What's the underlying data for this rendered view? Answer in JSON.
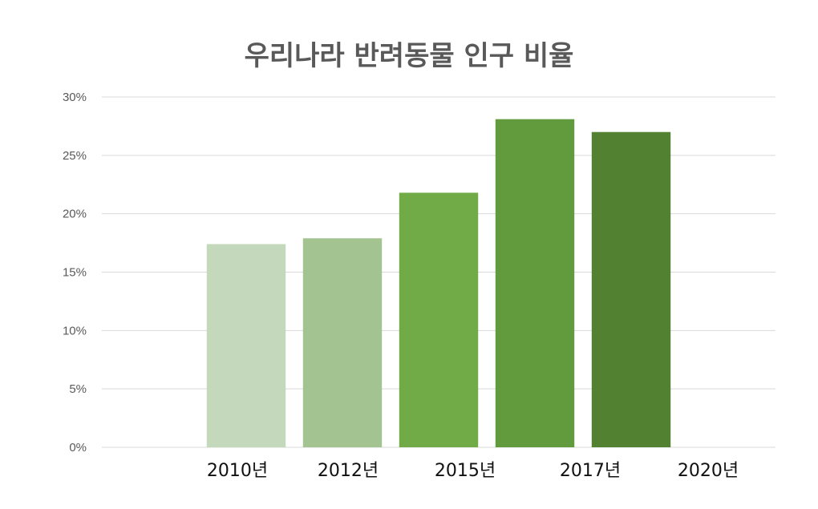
{
  "chart_data": {
    "type": "bar",
    "title": "우리나라 반려동물 인구 비율",
    "xlabel": "",
    "ylabel": "",
    "categories": [
      "2010년",
      "2012년",
      "2015년",
      "2017년",
      "2020년"
    ],
    "values": [
      17.4,
      17.9,
      21.8,
      28.1,
      27.0
    ],
    "ylim": [
      0,
      30
    ],
    "yticks": [
      "0%",
      "5%",
      "10%",
      "15%",
      "20%",
      "25%",
      "30%"
    ],
    "grid": true,
    "legend": "none",
    "colors": [
      "#c4d8bc",
      "#a3c490",
      "#70ab48",
      "#629a3e",
      "#528131"
    ]
  }
}
